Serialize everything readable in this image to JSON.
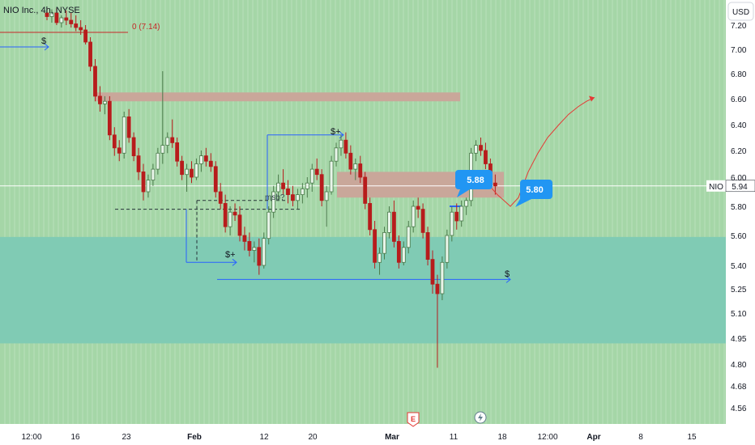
{
  "header": {
    "symbol_title": "NIO Inc., 4h, NYSE",
    "currency_button": "USD"
  },
  "price_axis": {
    "ticks": [
      "7.20",
      "7.00",
      "6.80",
      "6.60",
      "6.40",
      "6.20",
      "6.00",
      "5.80",
      "5.60",
      "5.40",
      "5.25",
      "5.10",
      "4.95",
      "4.80",
      "4.68",
      "4.56"
    ]
  },
  "time_axis": {
    "ticks": [
      "12:00",
      "16",
      "23",
      "Feb",
      "12",
      "20",
      "Mar",
      "11",
      "18",
      "12:00",
      "Apr",
      "8",
      "15"
    ]
  },
  "colors": {
    "panel_background": "#a5d6a7",
    "teal_zone": "#80cbb4",
    "supply_zone": "#c9a79a",
    "bull_candle": "#4a7a4a",
    "bear_candle": "#b71c1c",
    "annotation_blue": "#2962ff",
    "badge_blue": "#2196f3",
    "projection_red": "#e53935"
  },
  "annotations": {
    "prior_high_label": "0 (7.14)",
    "dollar_label_top": "$",
    "dollar_plus_label_mid": "$+",
    "dollar_plus_label_low": "$+",
    "dollar_label_right": "$",
    "msb_label": "msb?",
    "badge_near": "5.88",
    "badge_target": "5.80",
    "earnings_marker": "E",
    "dividend_marker_icon": "lightning-icon"
  },
  "last_price": {
    "symbol": "NIO",
    "value": "5.94"
  },
  "chart_data": {
    "type": "candlestick",
    "title": "NIO Inc., 4h, NYSE",
    "currency": "USD",
    "y_axis_ticks": [
      7.2,
      7.0,
      6.8,
      6.6,
      6.4,
      6.2,
      6.0,
      5.8,
      5.6,
      5.4,
      5.25,
      5.1,
      4.95,
      4.8,
      4.68,
      4.56
    ],
    "x_axis_ticks": [
      "12:00",
      "16",
      "23",
      "Feb",
      "12",
      "20",
      "Mar",
      "11",
      "18",
      "12:00",
      "Apr",
      "8",
      "15"
    ],
    "ylim": [
      4.5,
      7.3
    ],
    "last_price": 5.94,
    "zones": [
      {
        "name": "supply-zone-upper",
        "from": 6.58,
        "to": 6.65
      },
      {
        "name": "supply-zone-lower",
        "from": 5.86,
        "to": 6.04
      },
      {
        "name": "teal-demand-zone",
        "from": 4.92,
        "to": 5.59
      }
    ],
    "levels": [
      {
        "label": "0 (7.14)",
        "value": 7.14
      },
      {
        "label": "$",
        "value": 7.02
      },
      {
        "label": "$+",
        "value": 6.32
      },
      {
        "label": "msb?",
        "value": 5.78
      },
      {
        "label": "$+",
        "value": 5.42
      },
      {
        "label": "$",
        "value": 5.31
      }
    ],
    "callouts": [
      5.88,
      5.8
    ],
    "candles": [
      [
        7.3,
        7.34,
        7.24,
        7.27
      ],
      [
        7.27,
        7.33,
        7.22,
        7.3
      ],
      [
        7.3,
        7.34,
        7.2,
        7.22
      ],
      [
        7.22,
        7.28,
        7.18,
        7.26
      ],
      [
        7.26,
        7.32,
        7.2,
        7.24
      ],
      [
        7.24,
        7.3,
        7.18,
        7.21
      ],
      [
        7.21,
        7.28,
        7.15,
        7.18
      ],
      [
        7.18,
        7.24,
        7.12,
        7.16
      ],
      [
        7.16,
        7.2,
        7.04,
        7.06
      ],
      [
        7.06,
        7.1,
        6.82,
        6.86
      ],
      [
        6.86,
        6.92,
        6.58,
        6.62
      ],
      [
        6.62,
        6.7,
        6.5,
        6.56
      ],
      [
        6.56,
        6.62,
        6.48,
        6.58
      ],
      [
        6.58,
        6.62,
        6.28,
        6.32
      ],
      [
        6.32,
        6.38,
        6.16,
        6.22
      ],
      [
        6.22,
        6.28,
        6.12,
        6.18
      ],
      [
        6.18,
        6.5,
        6.14,
        6.46
      ],
      [
        6.46,
        6.52,
        6.26,
        6.3
      ],
      [
        6.3,
        6.34,
        6.12,
        6.16
      ],
      [
        6.16,
        6.22,
        5.98,
        6.04
      ],
      [
        6.04,
        6.1,
        5.84,
        5.9
      ],
      [
        5.9,
        6.02,
        5.86,
        5.98
      ],
      [
        5.98,
        6.1,
        5.94,
        6.06
      ],
      [
        6.06,
        6.22,
        6.02,
        6.18
      ],
      [
        6.18,
        6.82,
        6.1,
        6.24
      ],
      [
        6.24,
        6.34,
        6.18,
        6.3
      ],
      [
        6.3,
        6.44,
        6.22,
        6.26
      ],
      [
        6.26,
        6.3,
        6.08,
        6.12
      ],
      [
        6.12,
        6.16,
        5.98,
        6.02
      ],
      [
        6.02,
        6.1,
        5.9,
        6.06
      ],
      [
        6.06,
        6.12,
        5.96,
        6.0
      ],
      [
        6.0,
        6.14,
        5.98,
        6.1
      ],
      [
        6.1,
        6.2,
        6.04,
        6.16
      ],
      [
        6.16,
        6.22,
        6.08,
        6.12
      ],
      [
        6.12,
        6.18,
        6.04,
        6.08
      ],
      [
        6.08,
        6.12,
        5.86,
        5.9
      ],
      [
        5.9,
        5.96,
        5.78,
        5.82
      ],
      [
        5.82,
        5.88,
        5.62,
        5.66
      ],
      [
        5.66,
        5.8,
        5.6,
        5.76
      ],
      [
        5.76,
        5.82,
        5.7,
        5.74
      ],
      [
        5.74,
        5.8,
        5.56,
        5.6
      ],
      [
        5.6,
        5.66,
        5.5,
        5.56
      ],
      [
        5.56,
        5.62,
        5.46,
        5.5
      ],
      [
        5.5,
        5.56,
        5.42,
        5.52
      ],
      [
        5.52,
        5.58,
        5.34,
        5.4
      ],
      [
        5.4,
        5.62,
        5.38,
        5.58
      ],
      [
        5.58,
        5.8,
        5.54,
        5.76
      ],
      [
        5.76,
        5.94,
        5.72,
        5.9
      ],
      [
        5.9,
        6.02,
        5.84,
        5.96
      ],
      [
        5.96,
        6.06,
        5.88,
        5.92
      ],
      [
        5.92,
        5.98,
        5.82,
        5.88
      ],
      [
        5.88,
        5.94,
        5.8,
        5.84
      ],
      [
        5.84,
        5.92,
        5.78,
        5.88
      ],
      [
        5.88,
        5.96,
        5.82,
        5.92
      ],
      [
        5.92,
        6.0,
        5.86,
        5.96
      ],
      [
        5.96,
        6.1,
        5.9,
        6.06
      ],
      [
        6.06,
        6.14,
        5.98,
        6.02
      ],
      [
        6.02,
        6.06,
        5.8,
        5.84
      ],
      [
        5.84,
        5.94,
        5.66,
        5.9
      ],
      [
        5.9,
        6.16,
        5.88,
        6.12
      ],
      [
        6.12,
        6.26,
        6.08,
        6.22
      ],
      [
        6.22,
        6.32,
        6.16,
        6.28
      ],
      [
        6.28,
        6.34,
        6.14,
        6.18
      ],
      [
        6.18,
        6.24,
        6.02,
        6.06
      ],
      [
        6.06,
        6.14,
        5.98,
        6.1
      ],
      [
        6.1,
        6.16,
        5.96,
        6.0
      ],
      [
        6.0,
        6.04,
        5.78,
        5.82
      ],
      [
        5.82,
        5.86,
        5.6,
        5.64
      ],
      [
        5.64,
        5.7,
        5.38,
        5.42
      ],
      [
        5.42,
        5.52,
        5.34,
        5.48
      ],
      [
        5.48,
        5.66,
        5.44,
        5.62
      ],
      [
        5.62,
        5.8,
        5.58,
        5.76
      ],
      [
        5.76,
        5.84,
        5.52,
        5.56
      ],
      [
        5.56,
        5.6,
        5.38,
        5.42
      ],
      [
        5.42,
        5.56,
        5.4,
        5.52
      ],
      [
        5.52,
        5.7,
        5.48,
        5.66
      ],
      [
        5.66,
        5.84,
        5.62,
        5.8
      ],
      [
        5.8,
        5.86,
        5.72,
        5.78
      ],
      [
        5.78,
        5.82,
        5.58,
        5.62
      ],
      [
        5.62,
        5.66,
        5.4,
        5.44
      ],
      [
        5.44,
        5.5,
        5.22,
        5.28
      ],
      [
        5.28,
        5.34,
        4.78,
        5.22
      ],
      [
        5.22,
        5.46,
        5.18,
        5.42
      ],
      [
        5.42,
        5.64,
        5.38,
        5.6
      ],
      [
        5.6,
        5.8,
        5.56,
        5.76
      ],
      [
        5.76,
        5.82,
        5.64,
        5.7
      ],
      [
        5.7,
        5.84,
        5.66,
        5.8
      ],
      [
        5.8,
        5.86,
        5.74,
        5.84
      ],
      [
        5.84,
        6.22,
        5.8,
        6.18
      ],
      [
        6.18,
        6.28,
        6.12,
        6.24
      ],
      [
        6.24,
        6.3,
        6.16,
        6.2
      ],
      [
        6.2,
        6.26,
        6.06,
        6.1
      ],
      [
        6.1,
        6.14,
        5.92,
        5.96
      ],
      [
        5.96,
        6.02,
        5.88,
        5.94
      ]
    ]
  }
}
